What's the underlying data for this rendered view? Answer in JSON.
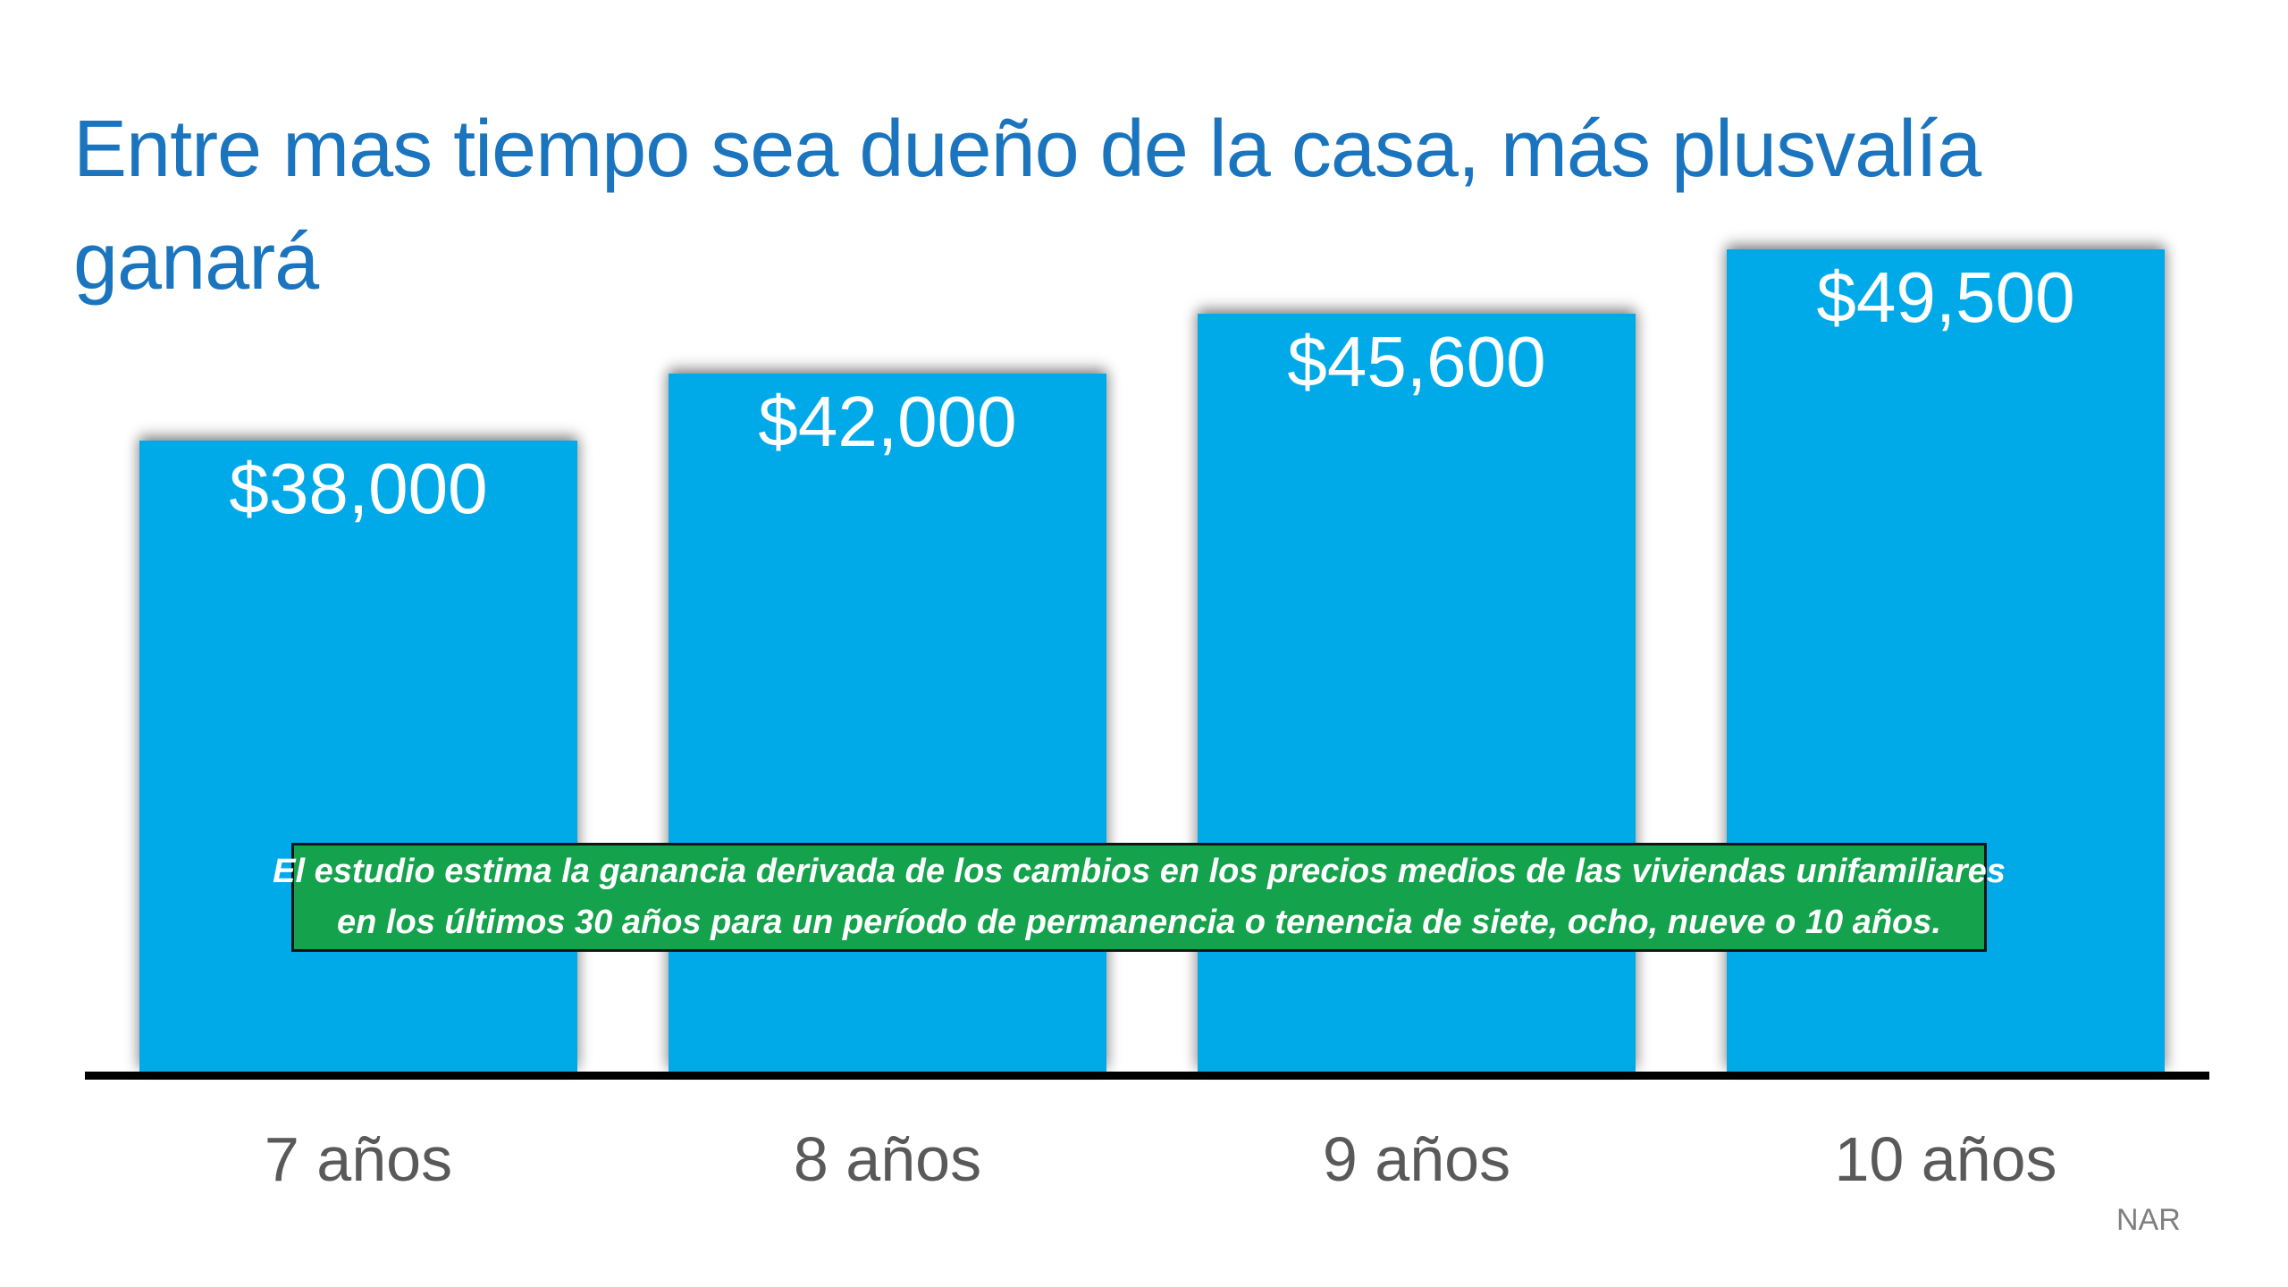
{
  "slide": {
    "title": "Entre mas tiempo sea dueño de la casa, más plusvalía ganará",
    "title_lines": [
      "Entre mas tiempo sea dueño de la casa, más plusvalía",
      "ganará"
    ],
    "callout": {
      "line1": "El estudio estima la ganancia derivada de los cambios en los precios medios de las viviendas unifamiliares",
      "line2": "en los últimos 30 años para un período de permanencia o tenencia de siete, ocho, nueve o 10 años."
    },
    "source": "NAR",
    "colors": {
      "title": "#1B75BE",
      "bar": "#00AAE8",
      "value_label": "#FFFFFF",
      "callout_bg": "#14A24C",
      "callout_border": "#141414",
      "axis": "#000000",
      "x_label": "#595959",
      "source": "#7F7F7F"
    }
  },
  "chart_data": {
    "type": "bar",
    "categories": [
      "7 años",
      "8 años",
      "9 años",
      "10 años"
    ],
    "values": [
      38000,
      42000,
      45600,
      49500
    ],
    "value_labels": [
      "$38,000",
      "$42,000",
      "$45,600",
      "$49,500"
    ],
    "title": "Entre mas tiempo sea dueño de la casa, más plusvalía ganará",
    "xlabel": "",
    "ylabel": "",
    "ylim": [
      0,
      52000
    ],
    "grid": false,
    "legend": false,
    "bar_color": "#00AAE8",
    "annotation": "El estudio estima la ganancia derivada de los cambios en los precios medios de las viviendas unifamiliares en los últimos 30 años para un período de permanencia o tenencia de siete, ocho, nueve o 10 años.",
    "source": "NAR"
  }
}
